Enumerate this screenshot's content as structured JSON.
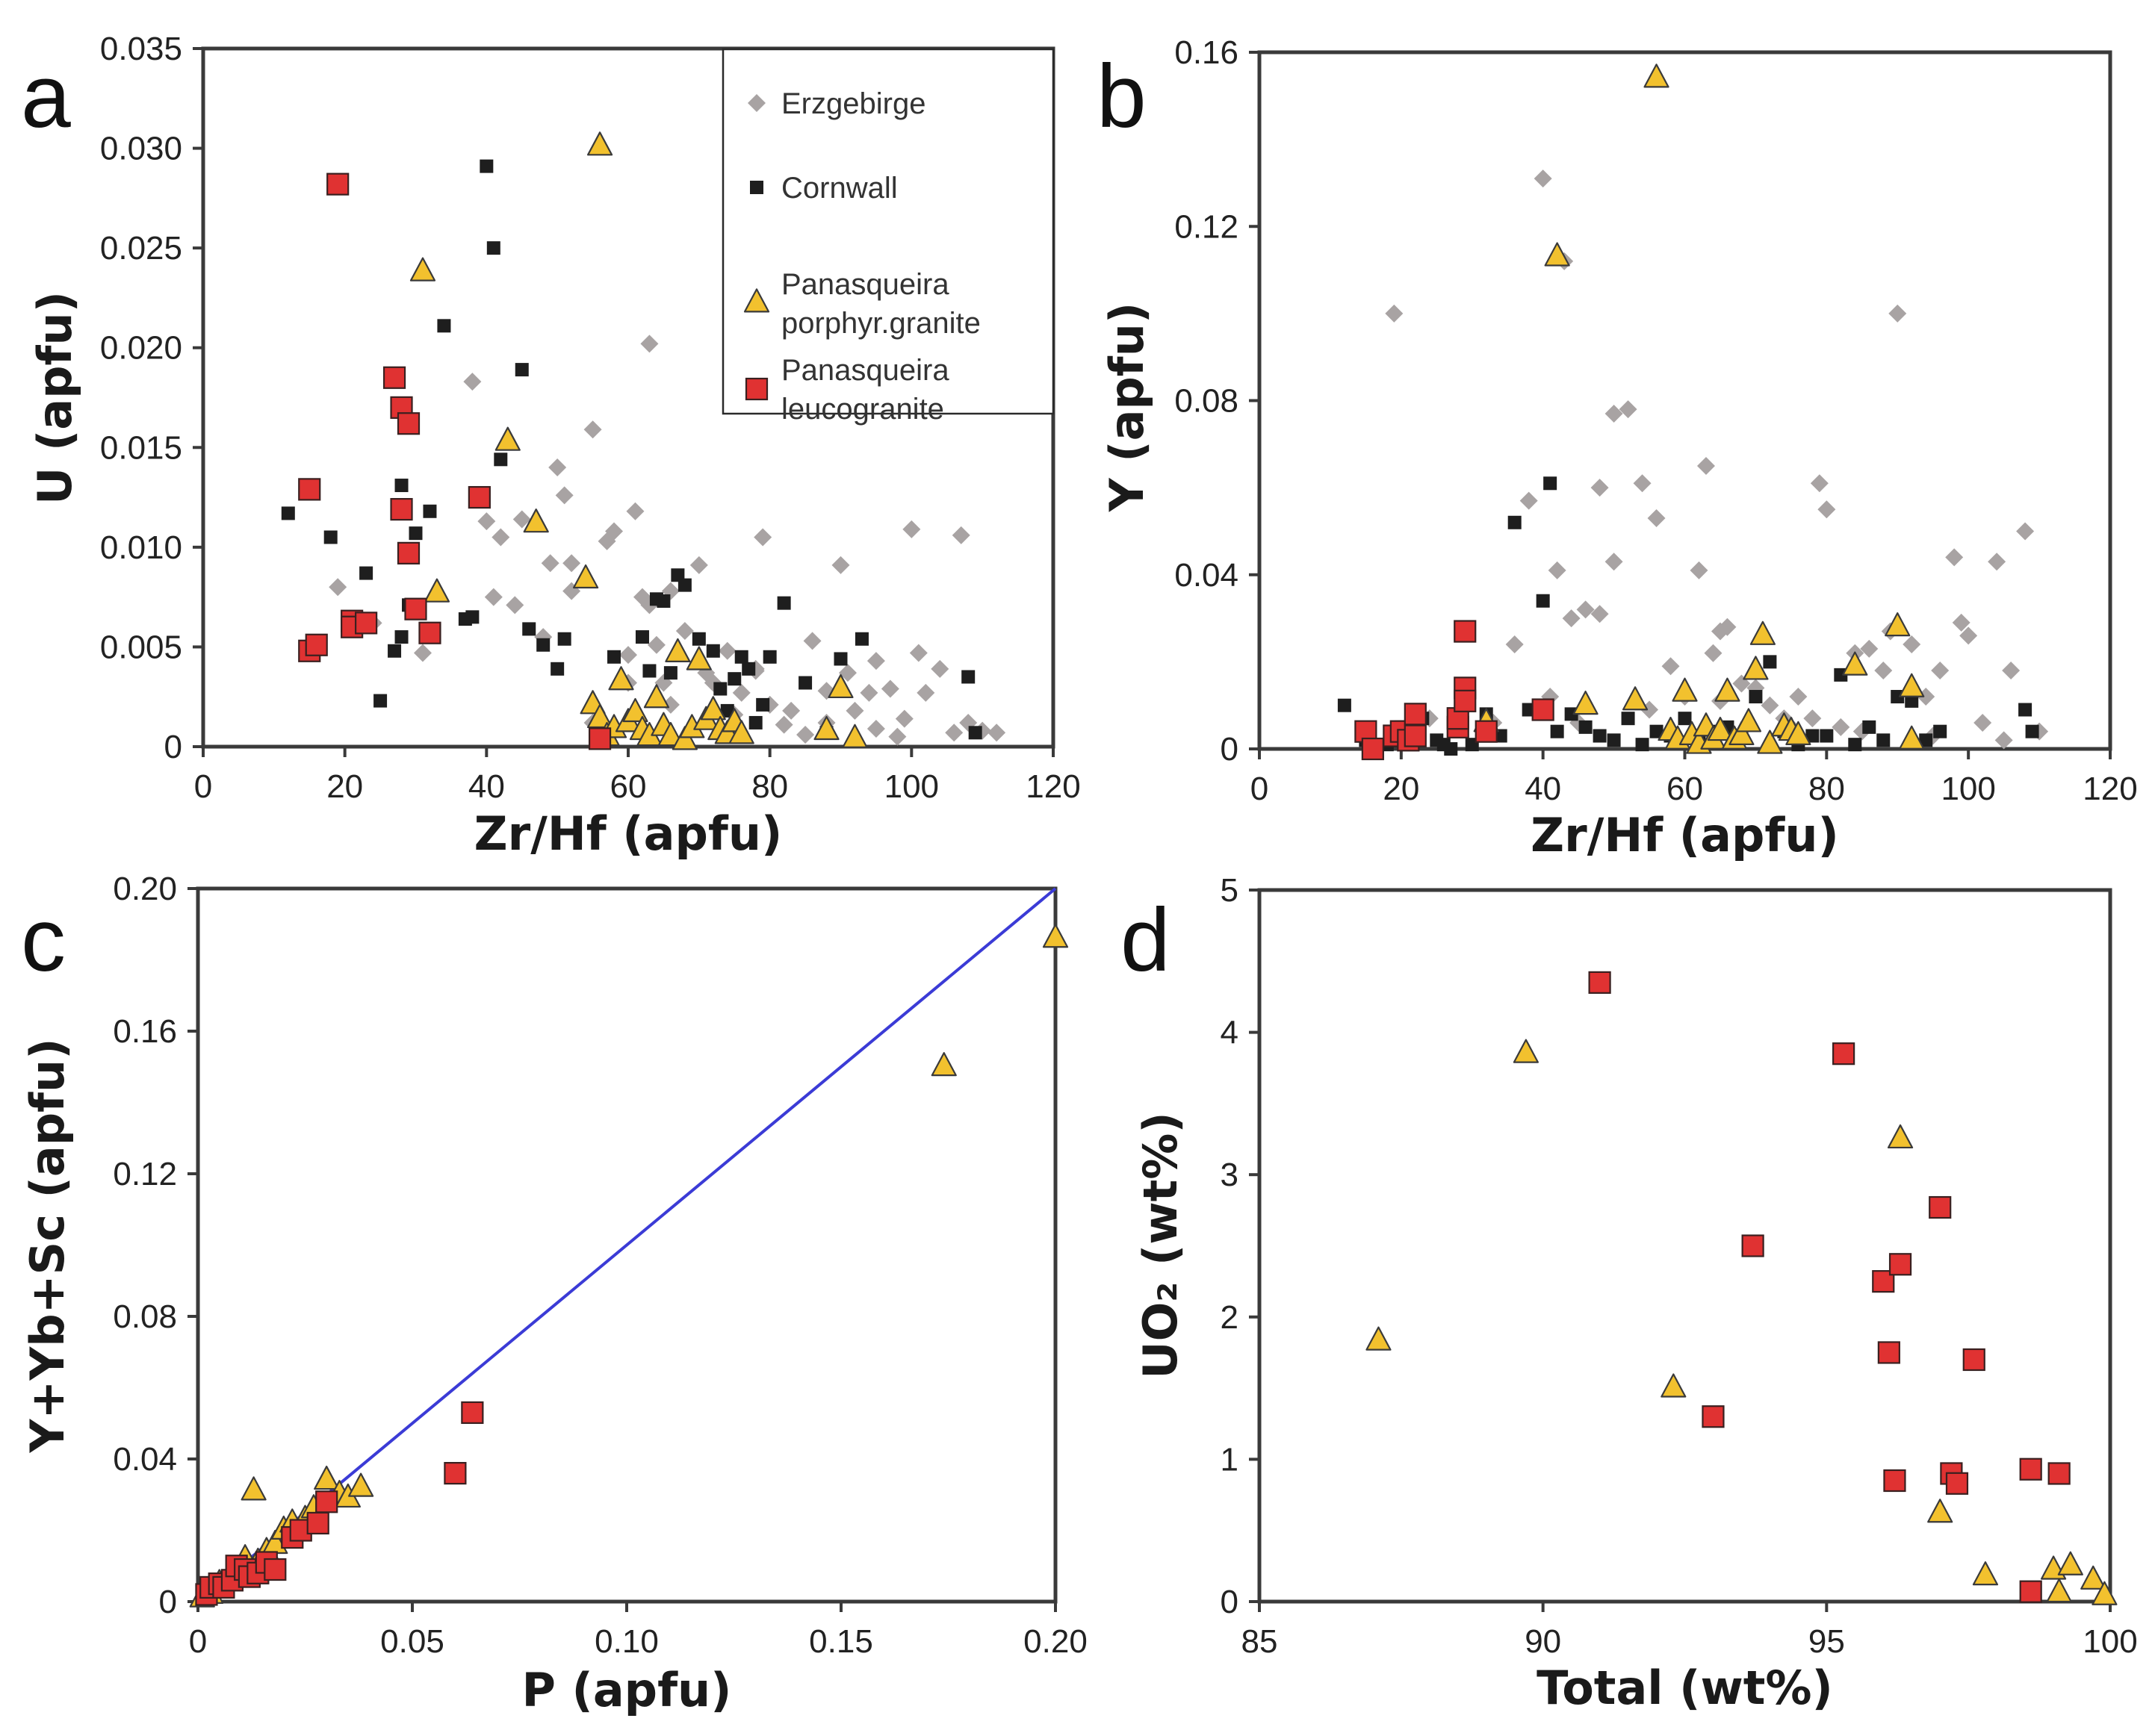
{
  "chart_data": [
    {
      "type": "scatter",
      "panel_label": "a",
      "xlabel": "Zr/Hf (apfu)",
      "ylabel": "U (apfu)",
      "xlim": [
        0,
        120
      ],
      "ylim": [
        0,
        0.035
      ],
      "xticks": [
        "0",
        "20",
        "40",
        "60",
        "80",
        "100",
        "120"
      ],
      "yticks": [
        "0",
        "0.005",
        "0.010",
        "0.015",
        "0.020",
        "0.025",
        "0.030",
        "0.035"
      ],
      "legend": {
        "position": "top-right",
        "entries": [
          {
            "label": "Erzgebirge",
            "marker": "diamond",
            "color": "#a8a3a3"
          },
          {
            "label": "Cornwall",
            "marker": "square-small",
            "color": "#1e1e1e"
          },
          {
            "label": "Panasqueira porphyr.granite",
            "lines": [
              "Panasqueira",
              "porphyr.granite"
            ],
            "marker": "triangle",
            "color": "#f2c12e"
          },
          {
            "label": "Panasqueira leucogranite",
            "lines": [
              "Panasqueira",
              "leucogranite"
            ],
            "marker": "square",
            "color": "#e03232"
          }
        ]
      },
      "series": [
        {
          "name": "Erzgebirge",
          "marker": "diamond",
          "color": "#a8a3a3",
          "x": [
            19,
            24,
            31,
            38,
            40,
            41,
            42,
            44,
            45,
            48,
            49,
            50,
            51,
            52,
            52,
            55,
            57,
            58,
            60,
            60,
            61,
            62,
            63,
            63,
            64,
            65,
            66,
            68,
            70,
            71,
            72,
            74,
            75,
            76,
            78,
            79,
            80,
            82,
            83,
            85,
            86,
            88,
            90,
            91,
            92,
            94,
            95,
            97,
            98,
            99,
            100,
            101,
            102,
            104,
            106,
            107,
            108,
            110,
            112,
            55,
            66,
            78,
            88,
            95
          ],
          "y": [
            0.008,
            0.0062,
            0.0047,
            0.0183,
            0.0113,
            0.0075,
            0.0105,
            0.0071,
            0.0114,
            0.0055,
            0.0092,
            0.014,
            0.0126,
            0.0078,
            0.0092,
            0.0159,
            0.0103,
            0.0108,
            0.0046,
            0.0032,
            0.0118,
            0.0075,
            0.0202,
            0.0071,
            0.0051,
            0.0032,
            0.0078,
            0.0058,
            0.0091,
            0.0037,
            0.0032,
            0.0048,
            0.0016,
            0.0027,
            0.0039,
            0.0105,
            0.0021,
            0.0011,
            0.0018,
            0.0006,
            0.0053,
            0.0028,
            0.0091,
            0.0037,
            0.0018,
            0.0027,
            0.0043,
            0.0029,
            0.0005,
            0.0014,
            0.0109,
            0.0047,
            0.0027,
            0.0039,
            0.0007,
            0.0106,
            0.0012,
            0.0008,
            0.0007,
            0.0012,
            0.0021,
            0.0038,
            0.0012,
            0.0009
          ]
        },
        {
          "name": "Cornwall",
          "marker": "square-small",
          "color": "#1e1e1e",
          "x": [
            12,
            18,
            23,
            25,
            27,
            28,
            29,
            30,
            32,
            34,
            37,
            40,
            41,
            42,
            45,
            46,
            48,
            50,
            51,
            56,
            58,
            62,
            63,
            64,
            65,
            66,
            67,
            68,
            70,
            72,
            73,
            74,
            75,
            76,
            77,
            78,
            79,
            80,
            82,
            85,
            88,
            90,
            93,
            108,
            109,
            28,
            38
          ],
          "y": [
            0.0117,
            0.0105,
            0.0087,
            0.0023,
            0.0048,
            0.0131,
            0.0071,
            0.0107,
            0.0118,
            0.0211,
            0.0064,
            0.0291,
            0.025,
            0.0144,
            0.0189,
            0.0059,
            0.0051,
            0.0039,
            0.0054,
            0.0009,
            0.0045,
            0.0055,
            0.0038,
            0.0074,
            0.0073,
            0.0037,
            0.0086,
            0.0081,
            0.0054,
            0.0048,
            0.0029,
            0.0018,
            0.0034,
            0.0045,
            0.0039,
            0.0012,
            0.0021,
            0.0045,
            0.0072,
            0.0032,
            0.0007,
            0.0044,
            0.0054,
            0.0035,
            0.0007,
            0.0055,
            0.0065
          ]
        },
        {
          "name": "Panasqueira porphyr.granite",
          "marker": "triangle",
          "color": "#f2c12e",
          "x": [
            31,
            33,
            43,
            47,
            54,
            55,
            56,
            56,
            57,
            58,
            59,
            60,
            61,
            62,
            63,
            64,
            65,
            66,
            67,
            68,
            69,
            70,
            71,
            72,
            73,
            74,
            75,
            76,
            88,
            90,
            92
          ],
          "y": [
            0.0238,
            0.0077,
            0.0153,
            0.0112,
            0.0084,
            0.0021,
            0.0301,
            0.0014,
            0.0005,
            0.0009,
            0.0033,
            0.0012,
            0.0017,
            0.0008,
            0.0005,
            0.0024,
            0.001,
            0.0005,
            0.0047,
            0.0003,
            0.0009,
            0.0043,
            0.0013,
            0.0018,
            0.0008,
            0.0006,
            0.0012,
            0.0006,
            0.0008,
            0.0029,
            0.0004
          ]
        },
        {
          "name": "Panasqueira leucogranite",
          "marker": "square",
          "color": "#e03232",
          "x": [
            15,
            15,
            16,
            19,
            21,
            21,
            23,
            27,
            28,
            28,
            29,
            29,
            30,
            32,
            39,
            56
          ],
          "y": [
            0.0129,
            0.0048,
            0.0051,
            0.0282,
            0.0063,
            0.006,
            0.0062,
            0.0185,
            0.0119,
            0.017,
            0.0162,
            0.0097,
            0.0069,
            0.0057,
            0.0125,
            0.0004
          ]
        }
      ]
    },
    {
      "type": "scatter",
      "panel_label": "b",
      "xlabel": "Zr/Hf (apfu)",
      "ylabel": "Y (apfu)",
      "xlim": [
        0,
        120
      ],
      "ylim": [
        0,
        0.16
      ],
      "xticks": [
        "0",
        "20",
        "40",
        "60",
        "80",
        "100",
        "120"
      ],
      "yticks": [
        "0",
        "0.04",
        "0.08",
        "0.12",
        "0.16"
      ],
      "series": [
        {
          "name": "Erzgebirge",
          "marker": "diamond",
          "color": "#a8a3a3",
          "x": [
            19,
            24,
            33,
            36,
            38,
            40,
            41,
            42,
            43,
            44,
            46,
            48,
            48,
            50,
            50,
            52,
            54,
            56,
            58,
            60,
            62,
            63,
            64,
            65,
            66,
            68,
            70,
            72,
            74,
            76,
            78,
            79,
            80,
            82,
            84,
            86,
            88,
            89,
            90,
            92,
            94,
            96,
            98,
            99,
            100,
            102,
            104,
            106,
            108,
            110,
            45,
            55,
            65,
            75,
            85,
            95,
            105
          ],
          "y": [
            0.1,
            0.007,
            0.006,
            0.024,
            0.057,
            0.131,
            0.012,
            0.041,
            0.112,
            0.03,
            0.032,
            0.031,
            0.06,
            0.077,
            0.043,
            0.078,
            0.061,
            0.053,
            0.019,
            0.012,
            0.041,
            0.065,
            0.022,
            0.027,
            0.028,
            0.015,
            0.014,
            0.01,
            0.007,
            0.012,
            0.007,
            0.061,
            0.055,
            0.005,
            0.022,
            0.023,
            0.018,
            0.027,
            0.1,
            0.024,
            0.012,
            0.018,
            0.044,
            0.029,
            0.026,
            0.006,
            0.043,
            0.018,
            0.05,
            0.004,
            0.006,
            0.009,
            0.011,
            0.005,
            0.004,
            0.003,
            0.002
          ]
        },
        {
          "name": "Cornwall",
          "marker": "square-small",
          "color": "#1e1e1e",
          "x": [
            12,
            15,
            18,
            20,
            23,
            25,
            26,
            27,
            28,
            30,
            32,
            34,
            36,
            38,
            40,
            41,
            42,
            44,
            46,
            48,
            50,
            52,
            54,
            56,
            58,
            60,
            62,
            64,
            66,
            68,
            70,
            72,
            74,
            76,
            78,
            80,
            82,
            84,
            86,
            88,
            90,
            92,
            94,
            96,
            108,
            109
          ],
          "y": [
            0.01,
            0.002,
            0.001,
            0.005,
            0.007,
            0.002,
            0.001,
            0.0,
            0.006,
            0.001,
            0.008,
            0.003,
            0.052,
            0.009,
            0.034,
            0.061,
            0.004,
            0.008,
            0.005,
            0.003,
            0.002,
            0.007,
            0.001,
            0.004,
            0.003,
            0.007,
            0.002,
            0.004,
            0.005,
            0.003,
            0.012,
            0.02,
            0.004,
            0.001,
            0.003,
            0.003,
            0.017,
            0.001,
            0.005,
            0.002,
            0.012,
            0.011,
            0.002,
            0.004,
            0.009,
            0.004
          ]
        },
        {
          "name": "Panasqueira porphyr.granite",
          "marker": "triangle",
          "color": "#f2c12e",
          "x": [
            32,
            42,
            46,
            53,
            56,
            58,
            59,
            60,
            61,
            62,
            63,
            64,
            65,
            66,
            67,
            68,
            69,
            70,
            71,
            72,
            74,
            75,
            76,
            84,
            90,
            92,
            92
          ],
          "y": [
            0.006,
            0.113,
            0.01,
            0.011,
            0.154,
            0.004,
            0.002,
            0.013,
            0.003,
            0.001,
            0.005,
            0.002,
            0.004,
            0.013,
            0.002,
            0.003,
            0.006,
            0.018,
            0.026,
            0.001,
            0.005,
            0.004,
            0.003,
            0.019,
            0.028,
            0.014,
            0.002
          ]
        },
        {
          "name": "Panasqueira leucogranite",
          "marker": "square",
          "color": "#e03232",
          "x": [
            15,
            16,
            19,
            20,
            21,
            22,
            22,
            28,
            28,
            29,
            29,
            29,
            32,
            40
          ],
          "y": [
            0.004,
            0.0,
            0.003,
            0.004,
            0.002,
            0.003,
            0.008,
            0.005,
            0.007,
            0.014,
            0.011,
            0.027,
            0.004,
            0.009
          ]
        }
      ]
    },
    {
      "type": "scatter",
      "panel_label": "c",
      "xlabel": "P (apfu)",
      "ylabel": "Y+Yb+Sc (apfu)",
      "xlim": [
        0,
        0.2
      ],
      "ylim": [
        0,
        0.2
      ],
      "xticks": [
        "0",
        "0.05",
        "0.10",
        "0.15",
        "0.20"
      ],
      "yticks": [
        "0",
        "0.04",
        "0.08",
        "0.12",
        "0.16",
        "0.20"
      ],
      "reference_line": {
        "x": [
          0,
          0.2
        ],
        "y": [
          0,
          0.2
        ],
        "color": "#3b3bd6"
      },
      "series": [
        {
          "name": "Panasqueira porphyr.granite",
          "marker": "triangle",
          "color": "#f2c12e",
          "x": [
            0.001,
            0.003,
            0.005,
            0.007,
            0.009,
            0.011,
            0.013,
            0.014,
            0.016,
            0.018,
            0.02,
            0.022,
            0.025,
            0.027,
            0.03,
            0.033,
            0.035,
            0.038,
            0.174,
            0.2
          ],
          "y": [
            0.001,
            0.002,
            0.005,
            0.006,
            0.008,
            0.012,
            0.031,
            0.011,
            0.014,
            0.016,
            0.02,
            0.022,
            0.023,
            0.026,
            0.034,
            0.03,
            0.029,
            0.032,
            0.15,
            0.186
          ]
        },
        {
          "name": "Panasqueira leucogranite",
          "marker": "square",
          "color": "#e03232",
          "x": [
            0.002,
            0.003,
            0.005,
            0.006,
            0.008,
            0.009,
            0.011,
            0.012,
            0.014,
            0.016,
            0.018,
            0.022,
            0.024,
            0.028,
            0.03,
            0.06,
            0.064
          ],
          "y": [
            0.002,
            0.004,
            0.005,
            0.004,
            0.006,
            0.01,
            0.009,
            0.007,
            0.008,
            0.011,
            0.009,
            0.018,
            0.02,
            0.022,
            0.028,
            0.036,
            0.053
          ]
        }
      ]
    },
    {
      "type": "scatter",
      "panel_label": "d",
      "xlabel": "Total (wt%)",
      "ylabel": "UO₂ (wt%)",
      "xlim": [
        85,
        100
      ],
      "ylim": [
        0,
        5
      ],
      "xticks": [
        "85",
        "90",
        "95",
        "100"
      ],
      "yticks": [
        "0",
        "1",
        "2",
        "3",
        "4",
        "5"
      ],
      "series": [
        {
          "name": "Panasqueira porphyr.granite",
          "marker": "triangle",
          "color": "#f2c12e",
          "x": [
            87.1,
            89.7,
            92.3,
            96.3,
            97,
            97.8,
            99,
            99.1,
            99.3,
            99.7,
            99.9
          ],
          "y": [
            1.83,
            3.85,
            1.5,
            3.25,
            0.62,
            0.18,
            0.22,
            0.06,
            0.25,
            0.15,
            0.04
          ]
        },
        {
          "name": "Panasqueira leucogranite",
          "marker": "square",
          "color": "#e03232",
          "x": [
            91,
            93,
            93.7,
            95.3,
            96,
            96.1,
            96.2,
            96.3,
            97,
            97.2,
            97.3,
            97.6,
            98.6,
            99.1,
            98.6
          ],
          "y": [
            4.35,
            1.3,
            2.5,
            3.85,
            2.25,
            1.75,
            0.85,
            2.37,
            2.77,
            0.9,
            0.83,
            1.7,
            0.93,
            0.9,
            0.07
          ]
        }
      ]
    }
  ]
}
